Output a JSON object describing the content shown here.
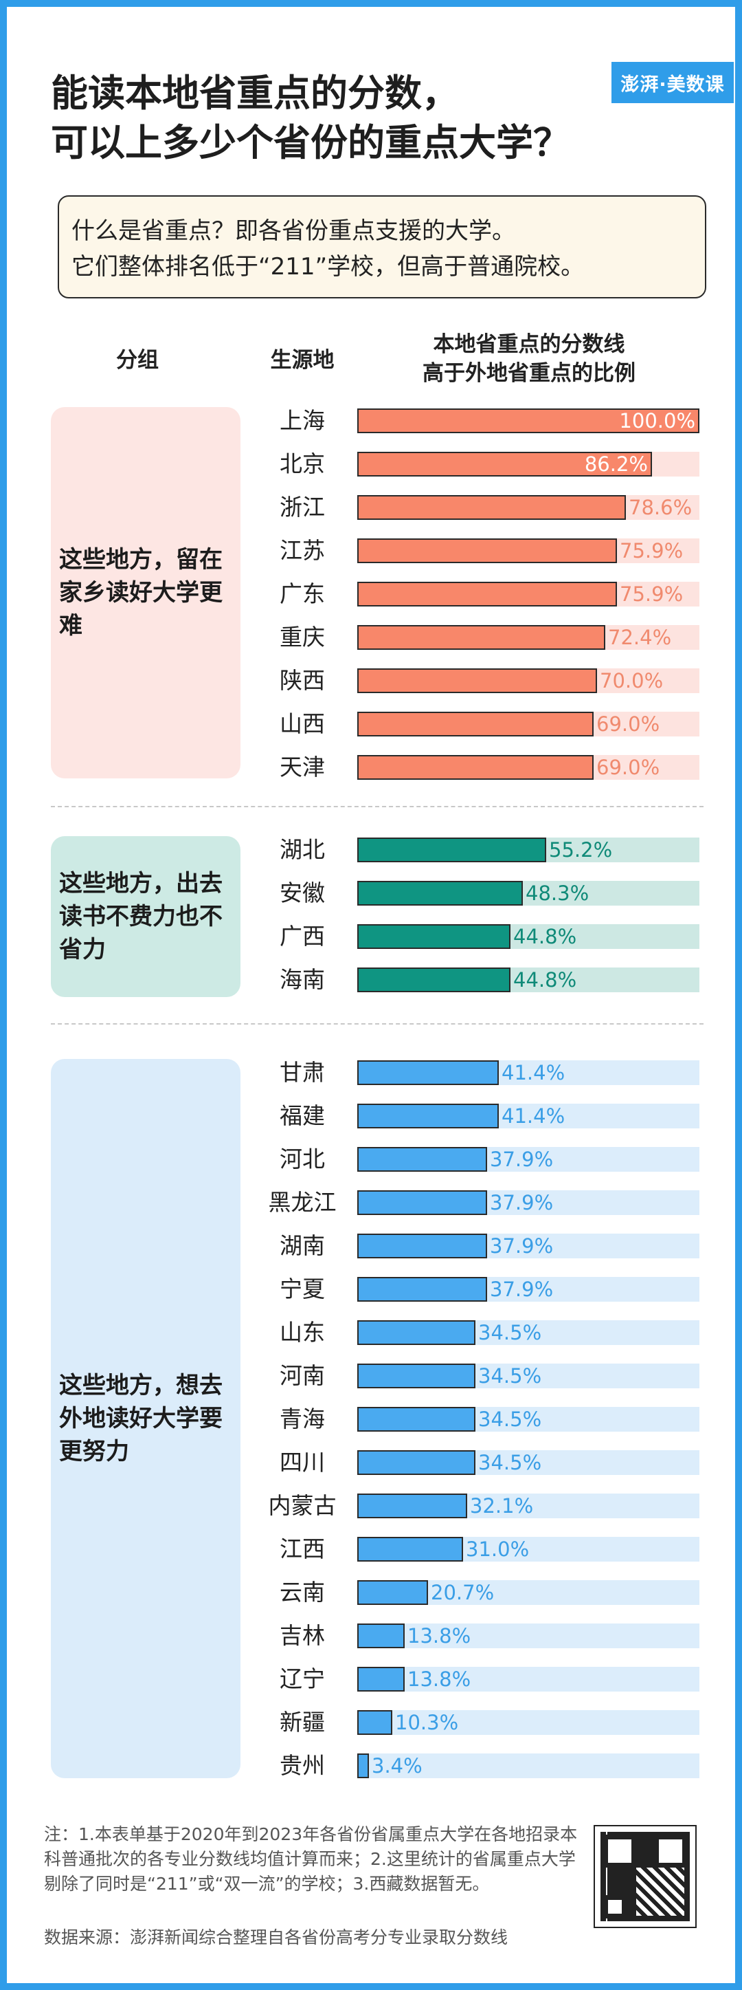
{
  "title_line1": "能读本地省重点的分数，",
  "title_line2": "可以上多少个省份的重点大学？",
  "logo": "澎湃·美数课",
  "info_line1": "什么是省重点？即各省份重点支援的大学。",
  "info_line2": "它们整体排名低于“211”学校，但高于普通院校。",
  "headers": {
    "group": "分组",
    "origin": "生源地",
    "metric_line1": "本地省重点的分数线",
    "metric_line2": "高于外地省重点的比例"
  },
  "colors": {
    "group1": "#f8876a",
    "group1_track": "#fde3df",
    "group1_text": "#f08a6e",
    "group2": "#0f9582",
    "group2_track": "#cde8e3",
    "group2_text": "#0f8a78",
    "group3": "#4aaaf0",
    "group3_track": "#dcedfb",
    "group3_text": "#3a9ee6"
  },
  "chart_data": {
    "type": "bar",
    "orientation": "horizontal",
    "xlim": [
      0,
      100
    ],
    "unit": "%",
    "groups": [
      {
        "label": "这些地方，留在家乡读好大学更难",
        "categories": [
          "上海",
          "北京",
          "浙江",
          "江苏",
          "广东",
          "重庆",
          "陕西",
          "山西",
          "天津"
        ],
        "values": [
          100.0,
          86.2,
          78.6,
          75.9,
          75.9,
          72.4,
          70.0,
          69.0,
          69.0
        ],
        "labels": [
          "100.0%",
          "86.2%",
          "78.6%",
          "75.9%",
          "75.9%",
          "72.4%",
          "70.0%",
          "69.0%",
          "69.0%"
        ]
      },
      {
        "label": "这些地方，出去读书不费力也不省力",
        "categories": [
          "湖北",
          "安徽",
          "广西",
          "海南"
        ],
        "values": [
          55.2,
          48.3,
          44.8,
          44.8
        ],
        "labels": [
          "55.2%",
          "48.3%",
          "44.8%",
          "44.8%"
        ]
      },
      {
        "label": "这些地方，想去外地读好大学要更努力",
        "categories": [
          "甘肃",
          "福建",
          "河北",
          "黑龙江",
          "湖南",
          "宁夏",
          "山东",
          "河南",
          "青海",
          "四川",
          "内蒙古",
          "江西",
          "云南",
          "吉林",
          "辽宁",
          "新疆",
          "贵州"
        ],
        "values": [
          41.4,
          41.4,
          37.9,
          37.9,
          37.9,
          37.9,
          34.5,
          34.5,
          34.5,
          34.5,
          32.1,
          31.0,
          20.7,
          13.8,
          13.8,
          10.3,
          3.4
        ],
        "labels": [
          "41.4%",
          "41.4%",
          "37.9%",
          "37.9%",
          "37.9%",
          "37.9%",
          "34.5%",
          "34.5%",
          "34.5%",
          "34.5%",
          "32.1%",
          "31.0%",
          "20.7%",
          "13.8%",
          "13.8%",
          "10.3%",
          "3.4%"
        ]
      }
    ]
  },
  "note": "注：1.本表单基于2020年到2023年各省份省属重点大学在各地招录本科普通批次的各专业分数线均值计算而来；2.这里统计的省属重点大学剔除了同时是“211”或“双一流”的学校；3.西藏数据暂无。",
  "source": "数据来源：澎湃新闻综合整理自各省份高考分专业录取分数线"
}
